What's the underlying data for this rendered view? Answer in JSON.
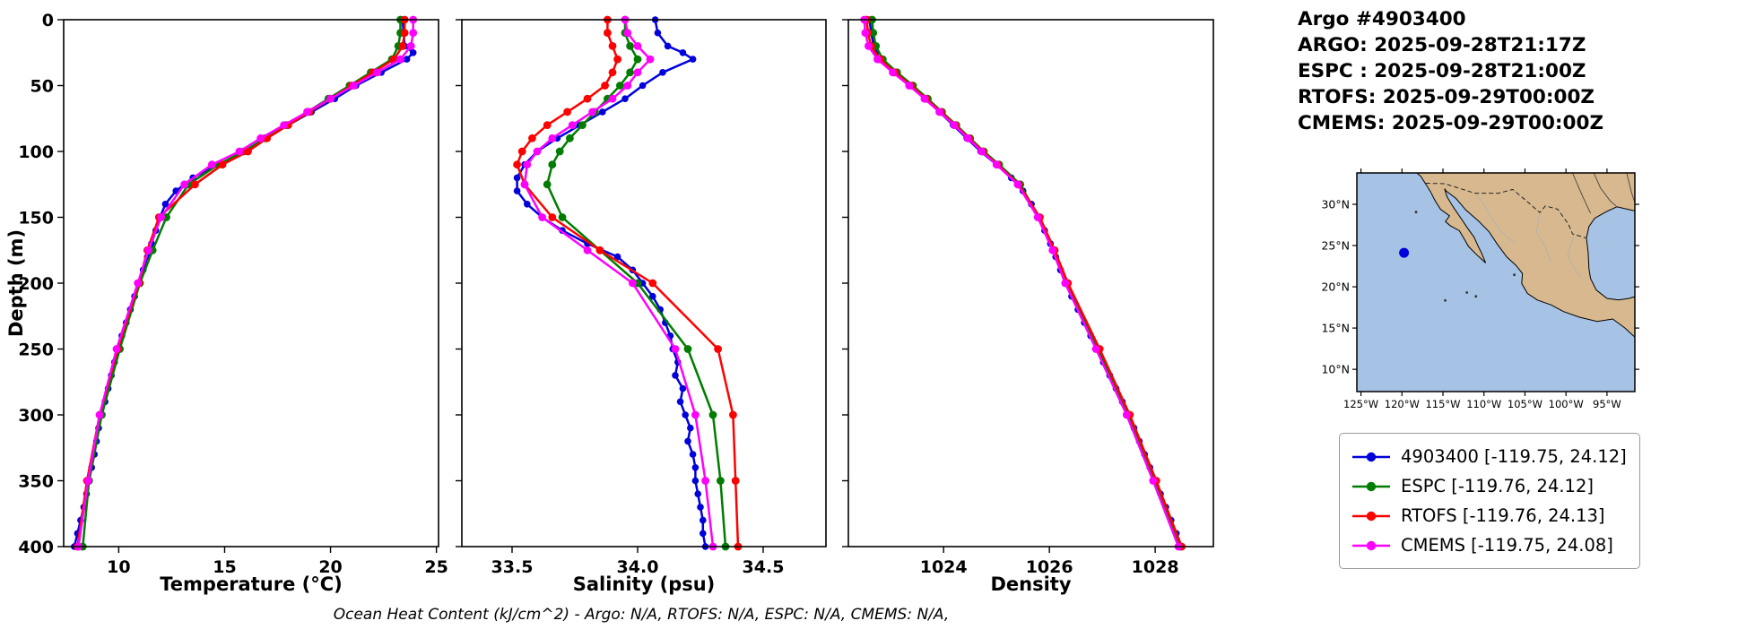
{
  "header": {
    "lines": [
      "Argo #4903400",
      "ARGO: 2025-09-28T21:17Z",
      "ESPC : 2025-09-28T21:00Z",
      "RTOFS: 2025-09-29T00:00Z",
      "CMEMS: 2025-09-29T00:00Z"
    ]
  },
  "legend": {
    "items": [
      {
        "label": "4903400 [-119.75, 24.12]",
        "color": "#0000dd"
      },
      {
        "label": "ESPC [-119.76, 24.12]",
        "color": "#007d00"
      },
      {
        "label": "RTOFS [-119.76, 24.13]",
        "color": "#ff0000"
      },
      {
        "label": "CMEMS [-119.75, 24.08]",
        "color": "#ff00ff"
      }
    ]
  },
  "chart_data": {
    "type": "line",
    "ylabel": "Depth (m)",
    "ylim": [
      0,
      400
    ],
    "yticks": [
      0,
      50,
      100,
      150,
      200,
      250,
      300,
      350,
      400
    ],
    "footnote": "Ocean Heat Content (kJ/cm^2) - Argo: N/A,  RTOFS: N/A,  ESPC: N/A,  CMEMS: N/A,",
    "panels": [
      {
        "key": "temperature",
        "xlabel": "Temperature (°C)",
        "xlim": [
          7.4,
          25.1
        ],
        "xticks": [
          10,
          15,
          20,
          25
        ],
        "xtick_labels": [
          "10",
          "15",
          "20",
          "25"
        ]
      },
      {
        "key": "salinity",
        "xlabel": "Salinity (psu)",
        "xlim": [
          33.3,
          34.75
        ],
        "xticks": [
          33.5,
          34.0,
          34.5
        ],
        "xtick_labels": [
          "33.5",
          "34.0",
          "34.5"
        ]
      },
      {
        "key": "density",
        "xlabel": "Density",
        "xlim": [
          1022.2,
          1029.1
        ],
        "xticks": [
          1024,
          1026,
          1028
        ],
        "xtick_labels": [
          "1024",
          "1026",
          "1028"
        ]
      }
    ],
    "series": [
      {
        "name": "4903400",
        "color": "#0000dd",
        "marker_size": 3.8,
        "depths": [
          0,
          10,
          20,
          25,
          30,
          40,
          50,
          60,
          70,
          80,
          90,
          100,
          110,
          120,
          130,
          140,
          150,
          160,
          170,
          180,
          190,
          200,
          210,
          220,
          230,
          240,
          250,
          260,
          270,
          280,
          290,
          300,
          310,
          320,
          330,
          340,
          350,
          360,
          370,
          380,
          390,
          400
        ],
        "temperature": [
          23.4,
          23.45,
          23.5,
          23.9,
          23.6,
          22.4,
          21.2,
          20.2,
          19.1,
          18.0,
          17.0,
          16.0,
          14.7,
          13.5,
          12.7,
          12.2,
          11.95,
          11.75,
          11.55,
          11.35,
          11.15,
          10.95,
          10.75,
          10.55,
          10.35,
          10.15,
          9.95,
          9.8,
          9.65,
          9.5,
          9.35,
          9.2,
          9.05,
          8.95,
          8.85,
          8.72,
          8.6,
          8.48,
          8.35,
          8.2,
          8.05,
          7.9
        ],
        "salinity": [
          34.07,
          34.08,
          34.12,
          34.18,
          34.22,
          34.1,
          34.02,
          33.95,
          33.86,
          33.77,
          33.68,
          33.6,
          33.55,
          33.52,
          33.52,
          33.56,
          33.62,
          33.7,
          33.8,
          33.92,
          33.98,
          34.02,
          34.06,
          34.09,
          34.11,
          34.13,
          34.14,
          34.16,
          34.15,
          34.18,
          34.17,
          34.19,
          34.21,
          34.2,
          34.22,
          34.23,
          34.23,
          34.24,
          34.25,
          34.26,
          34.26,
          34.27
        ],
        "density": [
          1022.6,
          1022.63,
          1022.68,
          1022.72,
          1022.8,
          1023.08,
          1023.4,
          1023.66,
          1023.92,
          1024.18,
          1024.44,
          1024.7,
          1025.0,
          1025.28,
          1025.5,
          1025.66,
          1025.8,
          1025.91,
          1026.02,
          1026.12,
          1026.21,
          1026.3,
          1026.42,
          1026.54,
          1026.66,
          1026.78,
          1026.9,
          1027.02,
          1027.14,
          1027.26,
          1027.38,
          1027.5,
          1027.6,
          1027.7,
          1027.8,
          1027.9,
          1028.0,
          1028.1,
          1028.2,
          1028.3,
          1028.4,
          1028.5
        ]
      },
      {
        "name": "ESPC",
        "color": "#007d00",
        "marker_size": 4.4,
        "depths": [
          0,
          10,
          20,
          30,
          40,
          50,
          60,
          70,
          80,
          90,
          100,
          110,
          125,
          150,
          175,
          200,
          250,
          300,
          350,
          400
        ],
        "temperature": [
          23.3,
          23.3,
          23.2,
          22.9,
          21.9,
          20.9,
          19.9,
          18.9,
          17.9,
          16.9,
          15.9,
          14.7,
          13.3,
          12.25,
          11.6,
          11.0,
          10.05,
          9.2,
          8.6,
          8.3
        ],
        "salinity": [
          33.95,
          33.95,
          33.97,
          34.0,
          33.97,
          33.93,
          33.88,
          33.83,
          33.78,
          33.73,
          33.69,
          33.66,
          33.64,
          33.7,
          33.85,
          34.0,
          34.2,
          34.3,
          34.33,
          34.35
        ],
        "density": [
          1022.65,
          1022.67,
          1022.72,
          1022.85,
          1023.12,
          1023.42,
          1023.7,
          1023.97,
          1024.24,
          1024.5,
          1024.76,
          1025.05,
          1025.45,
          1025.8,
          1026.08,
          1026.32,
          1026.92,
          1027.5,
          1028.0,
          1028.48
        ]
      },
      {
        "name": "RTOFS",
        "color": "#ff0000",
        "marker_size": 4.4,
        "depths": [
          0,
          10,
          20,
          30,
          40,
          50,
          60,
          70,
          80,
          90,
          100,
          110,
          125,
          150,
          175,
          200,
          250,
          300,
          350,
          400
        ],
        "temperature": [
          23.5,
          23.5,
          23.4,
          23.0,
          22.0,
          21.0,
          20.0,
          19.0,
          18.0,
          17.0,
          16.1,
          14.9,
          13.6,
          11.9,
          11.35,
          10.95,
          9.95,
          9.1,
          8.5,
          8.05
        ],
        "salinity": [
          33.88,
          33.88,
          33.9,
          33.92,
          33.9,
          33.87,
          33.8,
          33.72,
          33.64,
          33.58,
          33.54,
          33.52,
          33.55,
          33.66,
          33.85,
          34.06,
          34.32,
          34.38,
          34.39,
          34.4
        ],
        "density": [
          1022.55,
          1022.57,
          1022.63,
          1022.8,
          1023.08,
          1023.38,
          1023.67,
          1023.95,
          1024.22,
          1024.48,
          1024.74,
          1025.02,
          1025.42,
          1025.82,
          1026.1,
          1026.35,
          1026.95,
          1027.52,
          1028.02,
          1028.5
        ]
      },
      {
        "name": "CMEMS",
        "color": "#ff00ff",
        "marker_size": 4.4,
        "depths": [
          0,
          10,
          20,
          30,
          40,
          50,
          60,
          70,
          80,
          90,
          100,
          110,
          125,
          150,
          175,
          200,
          250,
          300,
          350,
          400
        ],
        "temperature": [
          23.9,
          23.9,
          23.8,
          23.3,
          22.2,
          21.1,
          20.0,
          18.9,
          17.8,
          16.7,
          15.7,
          14.4,
          13.1,
          12.0,
          11.4,
          10.9,
          9.9,
          9.1,
          8.55,
          8.1
        ],
        "salinity": [
          33.95,
          33.96,
          34.0,
          34.05,
          34.0,
          33.96,
          33.9,
          33.82,
          33.74,
          33.66,
          33.6,
          33.56,
          33.55,
          33.62,
          33.8,
          33.98,
          34.15,
          34.23,
          34.27,
          34.3
        ],
        "density": [
          1022.5,
          1022.52,
          1022.58,
          1022.75,
          1023.04,
          1023.35,
          1023.64,
          1023.92,
          1024.2,
          1024.46,
          1024.72,
          1025.0,
          1025.4,
          1025.78,
          1026.06,
          1026.3,
          1026.88,
          1027.46,
          1027.96,
          1028.44
        ]
      }
    ]
  },
  "map": {
    "extent": {
      "lon_min": -125.5,
      "lon_max": -91.6,
      "lat_min": 7.3,
      "lat_max": 33.8
    },
    "ocean_color": "#a6c2e4",
    "land_color": "#d8b98f",
    "lat_ticks": [
      10,
      15,
      20,
      25,
      30
    ],
    "lat_tick_labels": [
      "10°N",
      "15°N",
      "20°N",
      "25°N",
      "30°N"
    ],
    "lon_ticks": [
      -125,
      -120,
      -115,
      -110,
      -105,
      -100,
      -95
    ],
    "lon_tick_labels": [
      "125°W",
      "120°W",
      "115°W",
      "110°W",
      "105°W",
      "100°W",
      "95°W"
    ],
    "float_marker": {
      "lon": -119.75,
      "lat": 24.12,
      "color": "#0000dd"
    },
    "coastline": [
      [
        -118.2,
        33.8
      ],
      [
        -91.6,
        33.8
      ],
      [
        -91.6,
        29.2
      ],
      [
        -93.8,
        29.7
      ],
      [
        -95.1,
        29.1
      ],
      [
        -96.5,
        28.3
      ],
      [
        -97.2,
        27.3
      ],
      [
        -97.5,
        25.9
      ],
      [
        -97.3,
        24.2
      ],
      [
        -97.2,
        22.2
      ],
      [
        -97.0,
        21.0
      ],
      [
        -96.3,
        19.6
      ],
      [
        -95.0,
        18.6
      ],
      [
        -93.6,
        18.4
      ],
      [
        -92.3,
        18.6
      ],
      [
        -91.6,
        18.8
      ],
      [
        -91.6,
        13.9
      ],
      [
        -92.8,
        15.0
      ],
      [
        -94.3,
        16.1
      ],
      [
        -96.2,
        15.8
      ],
      [
        -98.3,
        16.3
      ],
      [
        -100.3,
        17.0
      ],
      [
        -101.8,
        17.8
      ],
      [
        -103.5,
        18.4
      ],
      [
        -104.7,
        19.2
      ],
      [
        -105.4,
        20.4
      ],
      [
        -105.3,
        21.6
      ],
      [
        -106.1,
        22.6
      ],
      [
        -107.2,
        23.6
      ],
      [
        -108.4,
        25.2
      ],
      [
        -109.4,
        26.7
      ],
      [
        -110.6,
        27.9
      ],
      [
        -112.2,
        29.3
      ],
      [
        -113.4,
        30.7
      ],
      [
        -114.6,
        31.6
      ],
      [
        -114.8,
        31.9
      ],
      [
        -114.5,
        30.9
      ],
      [
        -113.7,
        29.6
      ],
      [
        -112.8,
        28.3
      ],
      [
        -112.0,
        27.1
      ],
      [
        -111.2,
        26.0
      ],
      [
        -110.7,
        24.9
      ],
      [
        -110.3,
        24.1
      ],
      [
        -110.0,
        23.4
      ],
      [
        -109.8,
        22.9
      ],
      [
        -110.9,
        23.9
      ],
      [
        -111.9,
        24.9
      ],
      [
        -112.4,
        25.8
      ],
      [
        -113.0,
        26.8
      ],
      [
        -114.1,
        27.4
      ],
      [
        -114.7,
        27.9
      ],
      [
        -114.2,
        28.6
      ],
      [
        -115.3,
        29.4
      ],
      [
        -116.0,
        30.5
      ],
      [
        -116.5,
        31.5
      ],
      [
        -117.2,
        32.6
      ],
      [
        -117.7,
        33.4
      ]
    ],
    "border_dashed": [
      [
        -117.1,
        32.55
      ],
      [
        -114.8,
        32.5
      ],
      [
        -111.1,
        31.35
      ],
      [
        -108.2,
        31.35
      ],
      [
        -106.5,
        31.8
      ],
      [
        -104.8,
        30.4
      ],
      [
        -103.2,
        29.0
      ],
      [
        -102.5,
        29.8
      ],
      [
        -101.0,
        29.4
      ],
      [
        -99.7,
        27.6
      ],
      [
        -99.2,
        26.4
      ],
      [
        -97.5,
        25.9
      ]
    ],
    "state_lines": [
      [
        [
          -111.1,
          31.35
        ],
        [
          -110.0,
          30.0
        ],
        [
          -109.0,
          28.2
        ],
        [
          -107.8,
          26.6
        ],
        [
          -106.3,
          25.3
        ]
      ],
      [
        [
          -103.2,
          29.0
        ],
        [
          -103.6,
          26.6
        ],
        [
          -102.5,
          24.8
        ],
        [
          -101.8,
          23.0
        ]
      ],
      [
        [
          -99.0,
          26.2
        ],
        [
          -99.8,
          23.9
        ],
        [
          -99.0,
          22.2
        ],
        [
          -98.2,
          21.2
        ]
      ]
    ],
    "rivers": [
      [
        [
          -96.6,
          33.8
        ],
        [
          -95.8,
          32.0
        ],
        [
          -94.6,
          30.4
        ],
        [
          -93.9,
          29.8
        ]
      ],
      [
        [
          -92.6,
          33.8
        ],
        [
          -92.0,
          31.4
        ],
        [
          -91.6,
          30.2
        ]
      ],
      [
        [
          -99.2,
          33.8
        ],
        [
          -98.6,
          32.4
        ],
        [
          -97.9,
          30.8
        ],
        [
          -97.0,
          28.9
        ]
      ]
    ],
    "islands": [
      [
        -118.28,
        29.05
      ],
      [
        -110.98,
        18.85
      ],
      [
        -112.08,
        19.3
      ],
      [
        -114.73,
        18.35
      ],
      [
        -106.3,
        21.45
      ]
    ]
  }
}
